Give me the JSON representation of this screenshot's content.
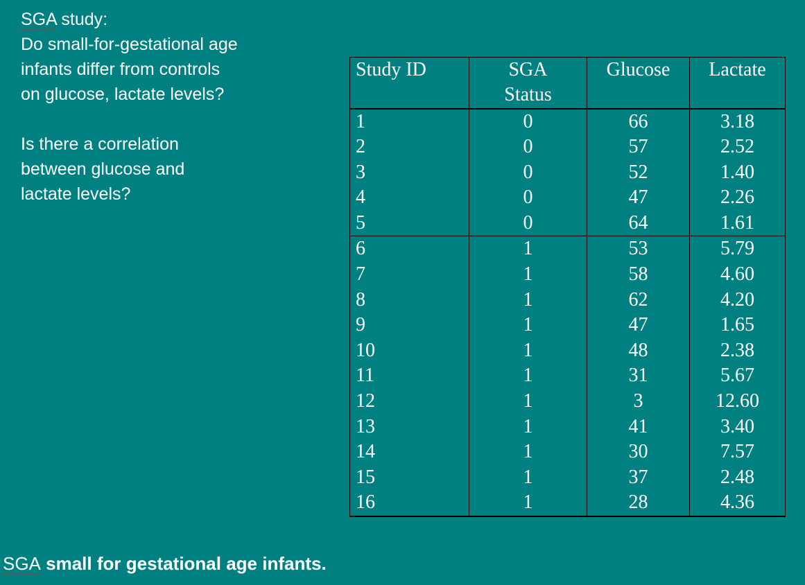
{
  "questions": {
    "title_abbrev": "SGA",
    "title_rest": " study:",
    "q1_lines": [
      "Do small-for-gestational age",
      "infants differ from controls",
      "on glucose, lactate levels?"
    ],
    "q2_lines": [
      "Is there a correlation",
      "between glucose and",
      "lactate levels?"
    ]
  },
  "table": {
    "headers": {
      "study_id": "Study ID",
      "sga_line1": "SGA",
      "sga_line2": "Status",
      "glucose": "Glucose",
      "lactate": "Lactate"
    },
    "rows": [
      {
        "id": "1",
        "sga": "0",
        "glucose": "66",
        "lactate": "3.18"
      },
      {
        "id": "2",
        "sga": "0",
        "glucose": "57",
        "lactate": "2.52"
      },
      {
        "id": "3",
        "sga": "0",
        "glucose": "52",
        "lactate": "1.40"
      },
      {
        "id": "4",
        "sga": "0",
        "glucose": "47",
        "lactate": "2.26"
      },
      {
        "id": "5",
        "sga": "0",
        "glucose": "64",
        "lactate": "1.61"
      },
      {
        "id": "6",
        "sga": "1",
        "glucose": "53",
        "lactate": "5.79"
      },
      {
        "id": "7",
        "sga": "1",
        "glucose": "58",
        "lactate": "4.60"
      },
      {
        "id": "8",
        "sga": "1",
        "glucose": "62",
        "lactate": "4.20"
      },
      {
        "id": "9",
        "sga": "1",
        "glucose": "47",
        "lactate": "1.65"
      },
      {
        "id": "10",
        "sga": "1",
        "glucose": "48",
        "lactate": "2.38"
      },
      {
        "id": "11",
        "sga": "1",
        "glucose": "31",
        "lactate": "5.67"
      },
      {
        "id": "12",
        "sga": "1",
        "glucose": "3",
        "lactate": "12.60"
      },
      {
        "id": "13",
        "sga": "1",
        "glucose": "41",
        "lactate": "3.40"
      },
      {
        "id": "14",
        "sga": "1",
        "glucose": "30",
        "lactate": "7.57"
      },
      {
        "id": "15",
        "sga": "1",
        "glucose": "37",
        "lactate": "2.48"
      },
      {
        "id": "16",
        "sga": "1",
        "glucose": "28",
        "lactate": "4.36"
      }
    ]
  },
  "footnote": {
    "abbrev": "SGA",
    "definition": " small for gestational age infants."
  },
  "colors": {
    "background": "#008080",
    "text": "#ffffff",
    "rule": "#000000"
  }
}
